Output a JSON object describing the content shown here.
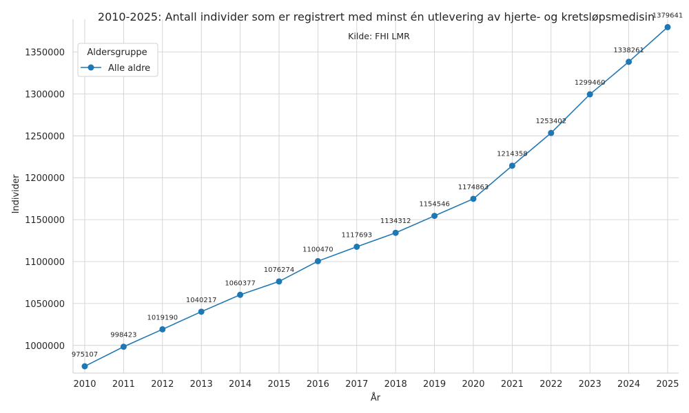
{
  "chart_data": {
    "type": "line",
    "title": "2010-2025: Antall individer som er registrert med minst én utlevering av hjerte- og kretsløpsmedisin",
    "subtitle": "Kilde: FHI LMR",
    "xlabel": "År",
    "ylabel": "Individer",
    "x": [
      2010,
      2011,
      2012,
      2013,
      2014,
      2015,
      2016,
      2017,
      2018,
      2019,
      2020,
      2021,
      2022,
      2023,
      2024,
      2025
    ],
    "series": [
      {
        "name": "Alle aldre",
        "color": "#1f77b4",
        "values": [
          975107,
          998423,
          1019190,
          1040217,
          1060377,
          1076274,
          1100470,
          1117693,
          1134312,
          1154546,
          1174863,
          1214358,
          1253402,
          1299460,
          1338261,
          1379641
        ]
      }
    ],
    "yticks": [
      1000000,
      1050000,
      1100000,
      1150000,
      1200000,
      1250000,
      1300000,
      1350000
    ],
    "ylim": [
      967000,
      1389000
    ],
    "grid": true,
    "legend": {
      "title": "Aldersgruppe",
      "position": "top-left"
    }
  }
}
